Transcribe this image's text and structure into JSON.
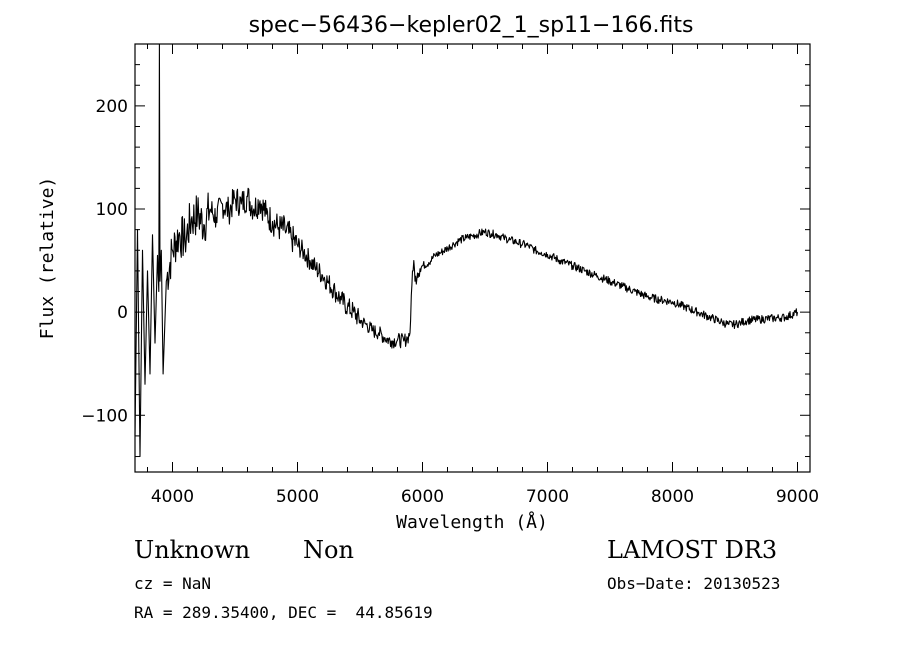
{
  "chart_data": {
    "type": "line",
    "title": "spec−56436−kepler02_1_sp11−166.fits",
    "xlabel": "Wavelength (Å)",
    "ylabel": "Flux (relative)",
    "xlim": [
      3700,
      9100
    ],
    "ylim": [
      -155,
      260
    ],
    "x_ticks": [
      4000,
      5000,
      6000,
      7000,
      8000,
      9000
    ],
    "x_tick_labels": [
      "4000",
      "5000",
      "6000",
      "7000",
      "8000",
      "9000"
    ],
    "y_ticks": [
      -100,
      0,
      100,
      200
    ],
    "y_tick_labels": [
      "−100",
      "0",
      "100",
      "200"
    ],
    "grid": false,
    "legend": "none",
    "series": [
      {
        "name": "spectrum",
        "color": "#000000",
        "x": [
          3700,
          3720,
          3740,
          3760,
          3780,
          3800,
          3820,
          3840,
          3860,
          3880,
          3890,
          3895,
          3900,
          3910,
          3925,
          3950,
          4000,
          4050,
          4100,
          4150,
          4200,
          4250,
          4300,
          4350,
          4400,
          4450,
          4500,
          4550,
          4600,
          4650,
          4700,
          4750,
          4800,
          4850,
          4900,
          4950,
          5000,
          5050,
          5100,
          5150,
          5200,
          5250,
          5300,
          5350,
          5400,
          5450,
          5500,
          5550,
          5600,
          5650,
          5700,
          5750,
          5800,
          5850,
          5880,
          5900,
          5920,
          5930,
          5940,
          5960,
          5980,
          6000,
          6050,
          6100,
          6150,
          6200,
          6250,
          6300,
          6350,
          6400,
          6450,
          6500,
          6550,
          6600,
          6650,
          6700,
          6750,
          6800,
          6850,
          6900,
          6950,
          7000,
          7100,
          7200,
          7300,
          7400,
          7500,
          7600,
          7700,
          7800,
          7900,
          8000,
          8100,
          8200,
          8300,
          8400,
          8450,
          8500,
          8550,
          8600,
          8700,
          8800,
          8900,
          9000
        ],
        "y": [
          -120,
          80,
          -140,
          60,
          -70,
          40,
          -60,
          75,
          -30,
          55,
          20,
          260,
          30,
          60,
          -60,
          30,
          60,
          75,
          70,
          90,
          95,
          85,
          100,
          92,
          105,
          98,
          110,
          105,
          112,
          100,
          108,
          95,
          88,
          82,
          80,
          72,
          65,
          58,
          50,
          42,
          36,
          28,
          20,
          12,
          5,
          0,
          -8,
          -12,
          -18,
          -20,
          -25,
          -28,
          -27,
          -28,
          -25,
          -20,
          40,
          50,
          30,
          38,
          42,
          45,
          48,
          55,
          58,
          62,
          66,
          70,
          72,
          74,
          76,
          78,
          76,
          75,
          72,
          70,
          68,
          66,
          64,
          60,
          58,
          56,
          50,
          45,
          40,
          35,
          30,
          25,
          20,
          15,
          12,
          10,
          5,
          0,
          -5,
          -10,
          -12,
          -12,
          -10,
          -8,
          -7,
          -6,
          -5,
          0
        ]
      }
    ]
  },
  "info": {
    "class_label": "Unknown",
    "subclass_label": "Non",
    "cz_text": "cz = NaN",
    "coords_text": "RA = 289.35400, DEC =  44.85619",
    "survey": "LAMOST DR3",
    "obs_date": "Obs−Date: 20130523"
  }
}
